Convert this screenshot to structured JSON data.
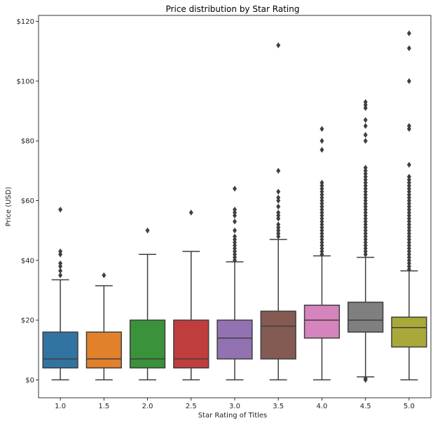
{
  "chart_data": {
    "type": "box",
    "title": "Price distribution by Star Rating",
    "xlabel": "Star Rating of Titles",
    "ylabel": "Price (USD)",
    "ylim": [
      -6,
      122
    ],
    "yticks": [
      0,
      20,
      40,
      60,
      80,
      100,
      120
    ],
    "ytick_labels": [
      "$0",
      "$20",
      "$40",
      "$60",
      "$80",
      "$100",
      "$120"
    ],
    "categories": [
      "1.0",
      "1.5",
      "2.0",
      "2.5",
      "3.0",
      "3.5",
      "4.0",
      "4.5",
      "5.0"
    ],
    "grid": false,
    "legend": "none",
    "boxes": [
      {
        "category": "1.0",
        "color": "#3274a1",
        "whisker_low": 0,
        "q1": 4,
        "median": 7,
        "q3": 16,
        "whisker_high": 33.5,
        "outliers": [
          35,
          36.5,
          38,
          39,
          42,
          43,
          57
        ]
      },
      {
        "category": "1.5",
        "color": "#e1812c",
        "whisker_low": 0,
        "q1": 4,
        "median": 7,
        "q3": 16,
        "whisker_high": 31.5,
        "outliers": [
          35
        ]
      },
      {
        "category": "2.0",
        "color": "#3a923a",
        "whisker_low": 0,
        "q1": 4,
        "median": 7,
        "q3": 20,
        "whisker_high": 42,
        "outliers": [
          50
        ]
      },
      {
        "category": "2.5",
        "color": "#c03d3e",
        "whisker_low": 0,
        "q1": 4,
        "median": 7,
        "q3": 20,
        "whisker_high": 43,
        "outliers": [
          56
        ]
      },
      {
        "category": "3.0",
        "color": "#9372b2",
        "whisker_low": 0,
        "q1": 7,
        "median": 14,
        "q3": 20,
        "whisker_high": 39.5,
        "outliers": [
          40,
          41,
          42,
          43,
          44,
          45,
          46,
          47,
          48,
          50,
          53,
          55,
          56,
          57,
          64
        ]
      },
      {
        "category": "3.5",
        "color": "#845b53",
        "whisker_low": 0,
        "q1": 7,
        "median": 18,
        "q3": 23,
        "whisker_high": 47,
        "outliers": [
          48,
          49,
          50,
          51,
          52,
          54,
          55,
          56,
          58,
          60,
          61,
          63,
          70,
          112
        ]
      },
      {
        "category": "4.0",
        "color": "#d684bd",
        "whisker_low": 0,
        "q1": 14,
        "median": 20,
        "q3": 25,
        "whisker_high": 41.5,
        "outliers": [
          42,
          43,
          44,
          45,
          46,
          47,
          48,
          49,
          50,
          51,
          52,
          53,
          54,
          55,
          56,
          57,
          58,
          59,
          60,
          61,
          62,
          63,
          64,
          65,
          66,
          77,
          80,
          84
        ]
      },
      {
        "category": "4.5",
        "color": "#7f7f7f",
        "whisker_low": 1,
        "q1": 16,
        "median": 20,
        "q3": 26,
        "whisker_high": 41,
        "outliers": [
          0,
          0.5,
          42,
          43,
          44,
          45,
          46,
          47,
          48,
          49,
          50,
          51,
          52,
          53,
          54,
          55,
          56,
          57,
          58,
          59,
          60,
          61,
          62,
          63,
          64,
          65,
          66,
          67,
          68,
          69,
          70,
          71,
          80,
          82,
          85,
          87,
          91,
          92,
          93
        ]
      },
      {
        "category": "5.0",
        "color": "#a9a93a",
        "whisker_low": 0,
        "q1": 11,
        "median": 17.5,
        "q3": 21,
        "whisker_high": 36.5,
        "outliers": [
          37,
          38,
          39,
          40,
          41,
          42,
          43,
          44,
          45,
          46,
          47,
          48,
          49,
          50,
          51,
          52,
          53,
          54,
          55,
          56,
          57,
          58,
          59,
          60,
          61,
          62,
          63,
          64,
          65,
          66,
          67,
          68,
          72,
          84,
          85,
          100,
          111,
          116
        ]
      }
    ]
  }
}
